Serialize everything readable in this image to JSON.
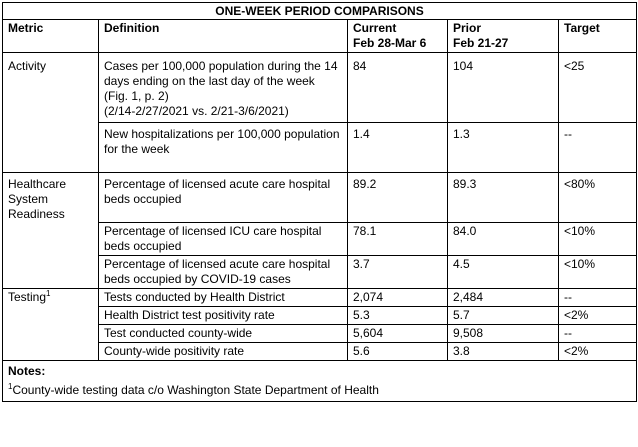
{
  "title": "ONE-WEEK PERIOD COMPARISONS",
  "headers": {
    "metric": "Metric",
    "definition": "Definition",
    "current": "Current",
    "current_range": "Feb 28-Mar 6",
    "prior": "Prior",
    "prior_range": "Feb 21-27",
    "target": "Target"
  },
  "sections": {
    "activity": {
      "label": "Activity",
      "rows": [
        {
          "definition": "Cases per 100,000 population during the 14 days ending on the last day of the week (Fig. 1, p. 2)",
          "definition_note": "(2/14-2/27/2021 vs. 2/21-3/6/2021)",
          "current": "84",
          "prior": "104",
          "target": "<25"
        },
        {
          "definition": "New hospitalizations per 100,000 population for the week",
          "current": "1.4",
          "prior": "1.3",
          "target": "--"
        }
      ]
    },
    "healthcare": {
      "label": "Healthcare System Readiness",
      "rows": [
        {
          "definition": "Percentage of licensed acute care hospital beds occupied",
          "current": "89.2",
          "prior": "89.3",
          "target": "<80%"
        },
        {
          "definition": "Percentage of licensed ICU care hospital beds occupied",
          "current": "78.1",
          "prior": "84.0",
          "target": "<10%"
        },
        {
          "definition": "Percentage of licensed acute care hospital beds occupied by COVID-19 cases",
          "current": "3.7",
          "prior": "4.5",
          "target": "<10%"
        }
      ]
    },
    "testing": {
      "label": "Testing",
      "label_sup": "1",
      "rows": [
        {
          "definition": "Tests conducted by Health District",
          "current": "2,074",
          "prior": "2,484",
          "target": "--"
        },
        {
          "definition": "Health District test positivity rate",
          "current": "5.3",
          "prior": "5.7",
          "target": "<2%"
        },
        {
          "definition": "Test conducted county-wide",
          "current": "5,604",
          "prior": "9,508",
          "target": "--"
        },
        {
          "definition": "County-wide positivity rate",
          "current": "5.6",
          "prior": "3.8",
          "target": "<2%"
        }
      ]
    }
  },
  "notes": {
    "heading": "Notes:",
    "footnote_marker": "1",
    "footnote_text": "County-wide testing data c/o Washington State Department of Health"
  }
}
